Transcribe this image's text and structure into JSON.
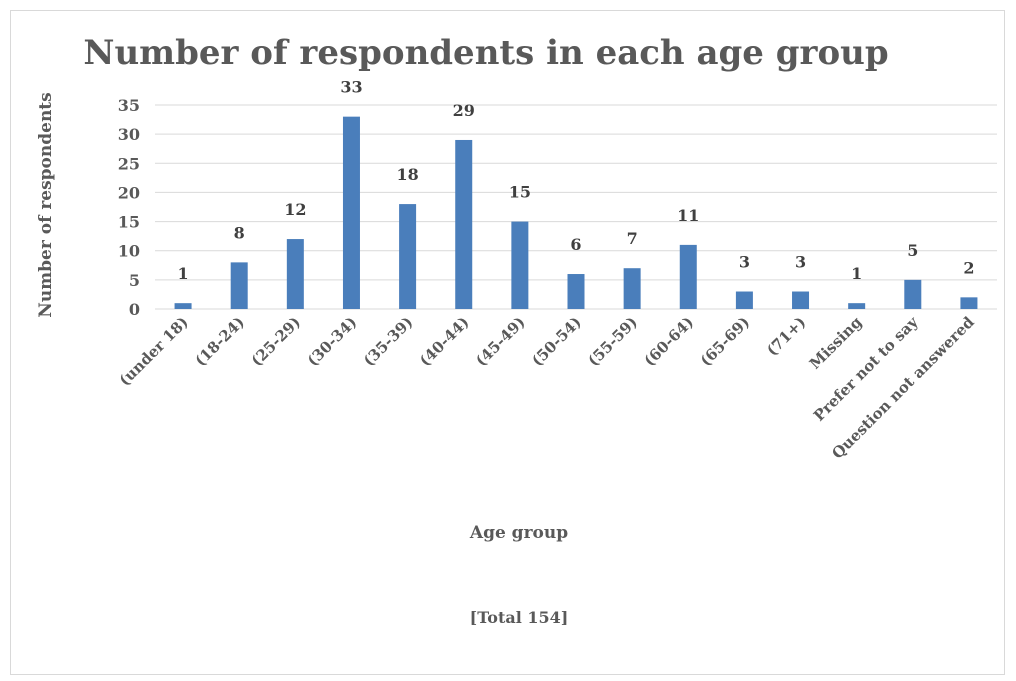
{
  "chart_data": {
    "type": "bar",
    "title": "Number of respondents in each age group",
    "xlabel": "Age group",
    "ylabel": "Number of respondents",
    "note": "[Total 154]",
    "categories": [
      "(under 18)",
      "(18-24)",
      "(25-29)",
      "(30-34)",
      "(35-39)",
      "(40-44)",
      "(45-49)",
      "(50-54)",
      "(55-59)",
      "(60-64)",
      "(65-69)",
      "(71+)",
      "Missing",
      "Prefer not to say",
      "Question not answered"
    ],
    "values": [
      1,
      8,
      12,
      33,
      18,
      29,
      15,
      6,
      7,
      11,
      3,
      3,
      1,
      5,
      2
    ],
    "ylim": [
      0,
      35
    ],
    "yticks": [
      0,
      5,
      10,
      15,
      20,
      25,
      30,
      35
    ],
    "grid": true,
    "legend": "none",
    "bar_color": "#4a7ebb"
  }
}
